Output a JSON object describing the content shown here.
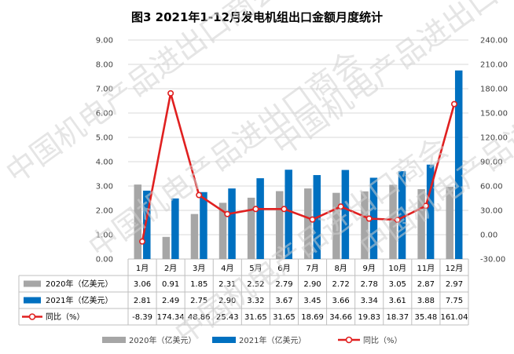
{
  "chart_data": {
    "type": "bar",
    "title": "图3  2021年1-12月发电机组出口金额月度统计",
    "categories": [
      "1月",
      "2月",
      "3月",
      "4月",
      "5月",
      "6月",
      "7月",
      "8月",
      "9月",
      "10月",
      "11月",
      "12月"
    ],
    "series": [
      {
        "name": "2020年（亿美元）",
        "type": "bar",
        "axis": "left",
        "color": "#a6a6a6",
        "values": [
          3.06,
          0.91,
          1.85,
          2.31,
          2.52,
          2.79,
          2.9,
          2.72,
          2.78,
          3.05,
          2.87,
          2.97
        ],
        "labels": [
          "3.06",
          "0.91",
          "1.85",
          "2.31",
          "2.52",
          "2.79",
          "2.90",
          "2.72",
          "2.78",
          "3.05",
          "2.87",
          "2.97"
        ]
      },
      {
        "name": "2021年（亿美元）",
        "type": "bar",
        "axis": "left",
        "color": "#0070c0",
        "values": [
          2.81,
          2.49,
          2.75,
          2.9,
          3.32,
          3.67,
          3.45,
          3.66,
          3.34,
          3.61,
          3.88,
          7.75
        ],
        "labels": [
          "2.81",
          "2.49",
          "2.75",
          "2.90",
          "3.32",
          "3.67",
          "3.45",
          "3.66",
          "3.34",
          "3.61",
          "3.88",
          "7.75"
        ]
      },
      {
        "name": "同比（%）",
        "type": "line",
        "axis": "right",
        "color": "#e02020",
        "values": [
          -8.39,
          174.34,
          48.86,
          25.43,
          31.65,
          31.65,
          18.69,
          34.66,
          19.83,
          18.37,
          35.48,
          161.04
        ],
        "labels": [
          "-8.39",
          "174.34",
          "48.86",
          "25.43",
          "31.65",
          "31.65",
          "18.69",
          "34.66",
          "19.83",
          "18.37",
          "35.48",
          "161.04"
        ]
      }
    ],
    "ylim_left": [
      0,
      9
    ],
    "yticks_left": [
      "0.00",
      "1.00",
      "2.00",
      "3.00",
      "4.00",
      "5.00",
      "6.00",
      "7.00",
      "8.00",
      "9.00"
    ],
    "ylim_right": [
      -30,
      240
    ],
    "yticks_right": [
      "-30.00",
      "0.00",
      "30.00",
      "60.00",
      "90.00",
      "120.00",
      "150.00",
      "180.00",
      "210.00",
      "240.00"
    ],
    "legend_position": "bottom",
    "data_table": true,
    "watermark": "中国机电产品进出口商会"
  }
}
